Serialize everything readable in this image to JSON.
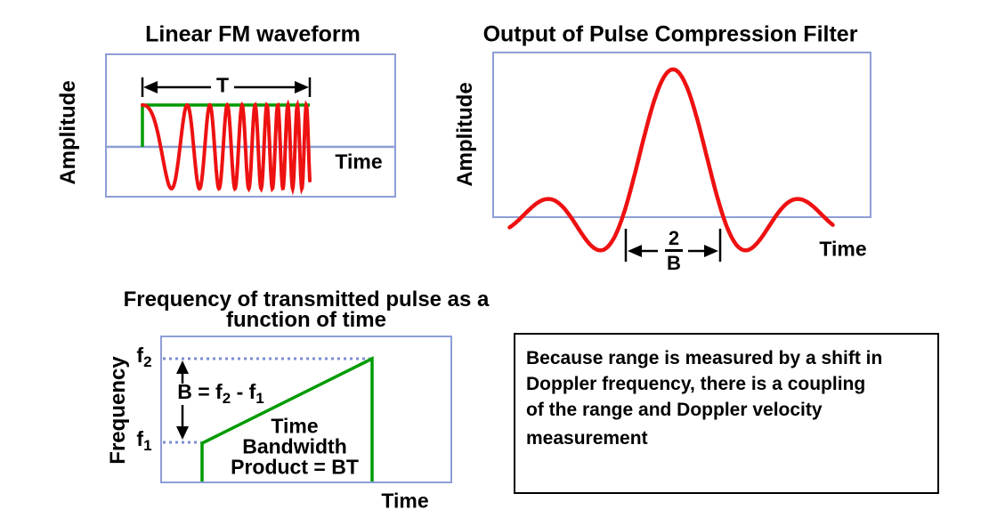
{
  "colors": {
    "background": "#ffffff",
    "box_border": "#8d9ed6",
    "dotted_guide": "#7b8ed2",
    "waveform_red": "#ee1111",
    "waveform_green": "#009b00",
    "text": "#000000",
    "note_border": "#000000"
  },
  "panels": {
    "linear_fm": {
      "title": "Linear FM waveform",
      "y_axis_label": "Amplitude",
      "x_axis_label": "Time",
      "pulse_width_label": "T",
      "waveform": "linear-fm-chirp"
    },
    "pulse_compression": {
      "title": "Output of Pulse Compression Filter",
      "y_axis_label": "Amplitude",
      "x_axis_label": "Time",
      "mainlobe_width_numerator": "2",
      "mainlobe_width_denominator": "B",
      "waveform": "compressed-pulse-sinc"
    },
    "frequency_ramp": {
      "title_line1": "Frequency of transmitted pulse as a",
      "title_line2": "function of time",
      "y_axis_label": "Frequency",
      "x_axis_label": "Time",
      "f2_base": "f",
      "f2_sub": "2",
      "f1_base": "f",
      "f1_sub": "1",
      "bandwidth_part1": "B = f",
      "bandwidth_sub1": "2",
      "bandwidth_part2": " - f",
      "bandwidth_sub2": "1",
      "annotation_line1": "Time",
      "annotation_line2": "Bandwidth",
      "annotation_line3": "Product = BT",
      "waveform": "frequency-ramp"
    }
  },
  "note_box": {
    "line1": "Because range is measured by a shift in",
    "line2": "Doppler frequency, there is a coupling",
    "line3": "of the range and Doppler velocity",
    "line4": "measurement"
  }
}
